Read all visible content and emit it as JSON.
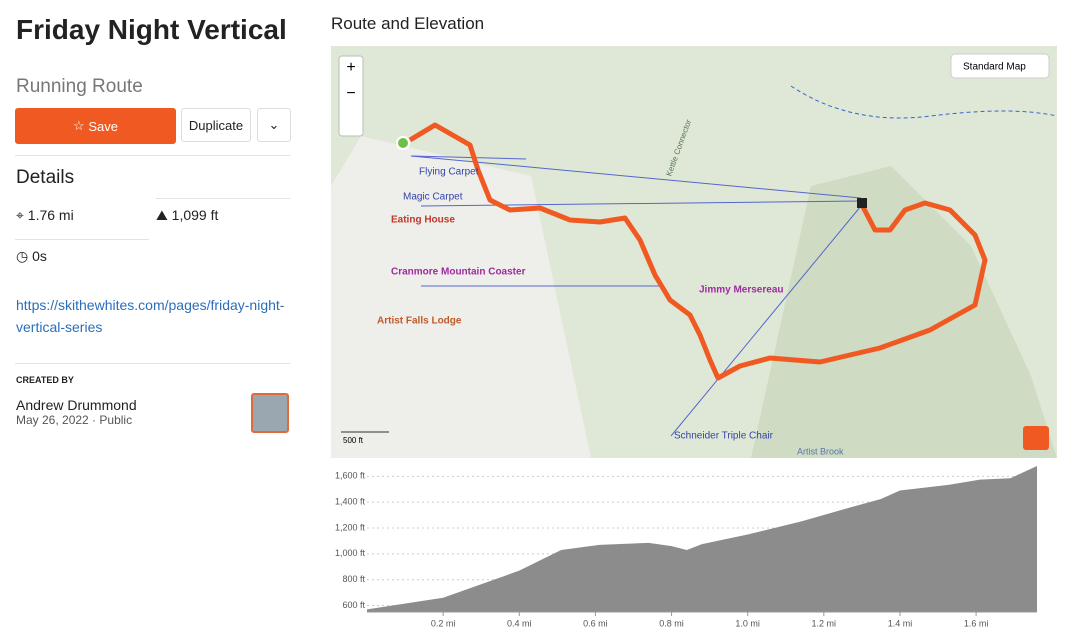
{
  "header": {
    "title": "Friday Night Vertical",
    "subtitle": "Running Route"
  },
  "buttons": {
    "save": "Save",
    "duplicate": "Duplicate"
  },
  "details": {
    "heading": "Details",
    "distance": "1.76 mi",
    "elevation_gain": "1,099 ft",
    "time": "0s",
    "link": "https://skithewhites.com/pages/friday-night-vertical-series"
  },
  "created_by": {
    "label": "CREATED BY",
    "name": "Andrew Drummond",
    "date": "May 26, 2022",
    "visibility": "Public"
  },
  "map": {
    "title": "Route and Elevation",
    "map_type": "Standard Map",
    "scale": "500 ft",
    "labels": [
      "Flying Carpet",
      "Magic Carpet",
      "Eating House",
      "Cranmore Mountain Coaster",
      "Artist Falls Lodge",
      "Jimmy Mersereau",
      "Schneider Triple Chair",
      "Kettle Connector",
      "Artist Brook"
    ]
  },
  "chart_data": {
    "type": "area",
    "color": "#8c8c8c",
    "grid": true,
    "x": [
      0,
      0.2,
      0.4,
      0.51,
      0.61,
      0.74,
      0.8,
      0.84,
      0.88,
      1.0,
      1.14,
      1.27,
      1.35,
      1.4,
      1.53,
      1.61,
      1.69,
      1.76
    ],
    "values": [
      570,
      660,
      870,
      1030,
      1070,
      1085,
      1060,
      1030,
      1075,
      1150,
      1250,
      1360,
      1425,
      1490,
      1535,
      1575,
      1585,
      1680
    ],
    "xlim": [
      0,
      1.76
    ],
    "ylim": [
      550,
      1680
    ],
    "xticks": [
      {
        "value": 0.2,
        "label": "0.2 mi"
      },
      {
        "value": 0.4,
        "label": "0.4 mi"
      },
      {
        "value": 0.6,
        "label": "0.6 mi"
      },
      {
        "value": 0.8,
        "label": "0.8 mi"
      },
      {
        "value": 1.0,
        "label": "1.0 mi"
      },
      {
        "value": 1.2,
        "label": "1.2 mi"
      },
      {
        "value": 1.4,
        "label": "1.4 mi"
      },
      {
        "value": 1.6,
        "label": "1.6 mi"
      }
    ],
    "yticks": [
      {
        "value": 600,
        "label": "600 ft"
      },
      {
        "value": 800,
        "label": "800 ft"
      },
      {
        "value": 1000,
        "label": "1,000 ft"
      },
      {
        "value": 1200,
        "label": "1,200 ft"
      },
      {
        "value": 1400,
        "label": "1,400 ft"
      },
      {
        "value": 1600,
        "label": "1,600 ft"
      }
    ]
  }
}
